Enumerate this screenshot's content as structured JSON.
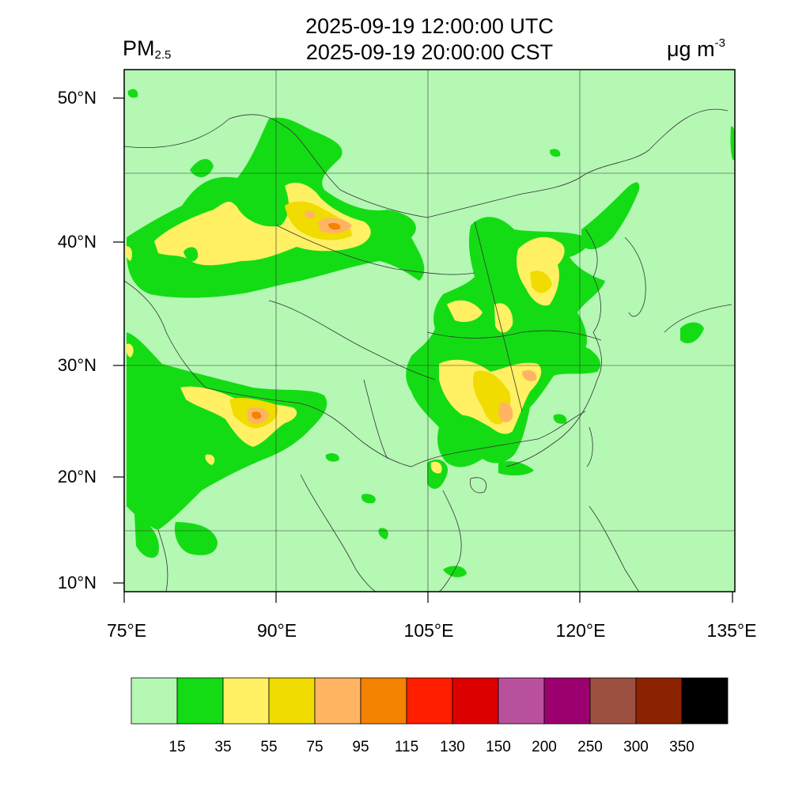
{
  "header": {
    "utc_time": "2025-09-19 12:00:00 UTC",
    "local_time": "2025-09-19 20:00:00 CST",
    "variable_main": "PM",
    "variable_sub": "2.5",
    "unit_main": "μg m",
    "unit_sup": "-3"
  },
  "axes": {
    "lat_labels": [
      "50°N",
      "40°N",
      "30°N",
      "20°N",
      "10°N"
    ],
    "lon_labels": [
      "75°E",
      "90°E",
      "105°E",
      "120°E",
      "135°E"
    ]
  },
  "colorbar": {
    "colors": [
      "#b4f8b4",
      "#14dc14",
      "#fff064",
      "#f0dc00",
      "#ffb464",
      "#f58200",
      "#ff1e00",
      "#dc0000",
      "#b9509b",
      "#9b006e",
      "#9b5041",
      "#8c2300",
      "#000000"
    ],
    "labels": [
      "15",
      "35",
      "55",
      "75",
      "95",
      "115",
      "130",
      "150",
      "200",
      "250",
      "300",
      "350"
    ]
  },
  "map_colors": {
    "background": "#b4f8b4",
    "level_35": "#14dc14",
    "level_55": "#fff064",
    "level_75": "#f0dc00",
    "level_95": "#ffb464",
    "level_115": "#f58200"
  }
}
